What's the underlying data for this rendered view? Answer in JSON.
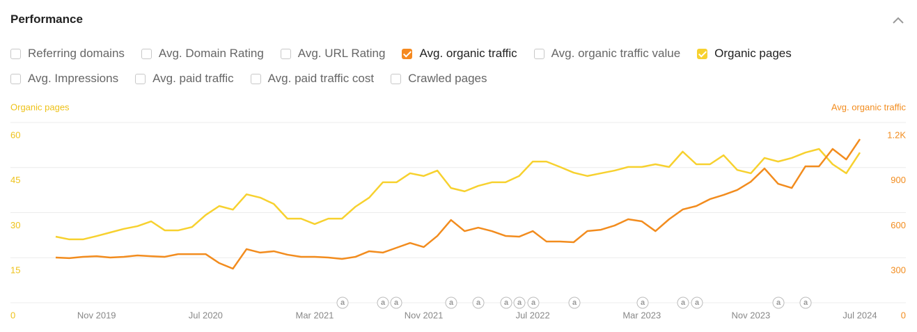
{
  "header": {
    "title": "Performance"
  },
  "metrics": [
    [
      {
        "label": "Referring domains",
        "checked": false
      },
      {
        "label": "Avg. Domain Rating",
        "checked": false
      },
      {
        "label": "Avg. URL Rating",
        "checked": false
      },
      {
        "label": "Avg. organic traffic",
        "checked": true,
        "color": "#f5891f"
      },
      {
        "label": "Avg. organic traffic value",
        "checked": false
      },
      {
        "label": "Organic pages",
        "checked": true,
        "color": "#f7d12f"
      }
    ],
    [
      {
        "label": "Avg. Impressions",
        "checked": false
      },
      {
        "label": "Avg. paid traffic",
        "checked": false
      },
      {
        "label": "Avg. paid traffic cost",
        "checked": false
      },
      {
        "label": "Crawled pages",
        "checked": false
      }
    ]
  ],
  "chart_data": {
    "type": "line",
    "ylabel": "Organic pages",
    "y2label": "Avg. organic traffic",
    "x": [
      "Aug 2019",
      "Sep 2019",
      "Oct 2019",
      "Nov 2019",
      "Dec 2019",
      "Jan 2020",
      "Feb 2020",
      "Mar 2020",
      "Apr 2020",
      "May 2020",
      "Jun 2020",
      "Jul 2020",
      "Aug 2020",
      "Sep 2020",
      "Oct 2020",
      "Nov 2020",
      "Dec 2020",
      "Jan 2021",
      "Feb 2021",
      "Mar 2021",
      "Apr 2021",
      "May 2021",
      "Jun 2021",
      "Jul 2021",
      "Aug 2021",
      "Sep 2021",
      "Oct 2021",
      "Nov 2021",
      "Dec 2021",
      "Jan 2022",
      "Feb 2022",
      "Mar 2022",
      "Apr 2022",
      "May 2022",
      "Jun 2022",
      "Jul 2022",
      "Aug 2022",
      "Sep 2022",
      "Oct 2022",
      "Nov 2022",
      "Dec 2022",
      "Jan 2023",
      "Feb 2023",
      "Mar 2023",
      "Apr 2023",
      "May 2023",
      "Jun 2023",
      "Jul 2023",
      "Aug 2023",
      "Sep 2023",
      "Oct 2023",
      "Nov 2023",
      "Dec 2023",
      "Jan 2024",
      "Feb 2024",
      "Mar 2024",
      "Apr 2024",
      "May 2024",
      "Jun 2024",
      "Jul 2024"
    ],
    "xticks": [
      "Nov 2019",
      "Jul 2020",
      "Mar 2021",
      "Nov 2021",
      "Jul 2022",
      "Mar 2023",
      "Nov 2023",
      "Jul 2024"
    ],
    "ylim": [
      0,
      60
    ],
    "yticks": [
      0,
      15,
      30,
      45,
      60
    ],
    "y2lim": [
      0,
      1200
    ],
    "y2ticks": [
      0,
      300,
      600,
      900,
      {
        "value": 1200,
        "label": "1.2K"
      }
    ],
    "grid": true,
    "annotation_marker": "a",
    "series": [
      {
        "name": "Organic pages",
        "color": "#f7d12f",
        "axis": "y",
        "values": [
          22.0,
          21.1,
          21.1,
          22.2,
          23.4,
          24.6,
          25.5,
          27.1,
          24.1,
          24.1,
          25.2,
          29.2,
          32.2,
          31.0,
          36.1,
          35.0,
          32.9,
          28.0,
          28.0,
          26.2,
          28.0,
          28.0,
          32.0,
          35.0,
          40.1,
          40.1,
          43.1,
          42.2,
          44.0,
          38.2,
          37.1,
          38.9,
          40.1,
          40.1,
          42.2,
          47.0,
          47.0,
          45.2,
          43.3,
          42.2,
          43.1,
          44.0,
          45.2,
          45.2,
          46.1,
          45.2,
          50.3,
          46.1,
          46.1,
          49.1,
          44.2,
          43.1,
          48.2,
          47.0,
          48.2,
          50.0,
          51.2,
          46.1,
          43.1,
          50.0
        ]
      },
      {
        "name": "Avg. organic traffic",
        "color": "#f28c1e",
        "axis": "y2",
        "values": [
          301,
          297,
          306,
          310,
          301,
          306,
          315,
          310,
          306,
          324,
          324,
          324,
          264,
          227,
          357,
          334,
          343,
          320,
          306,
          306,
          301,
          292,
          306,
          343,
          334,
          366,
          398,
          371,
          445,
          551,
          477,
          500,
          477,
          445,
          440,
          477,
          408,
          408,
          403,
          477,
          486,
          514,
          556,
          542,
          477,
          556,
          621,
          644,
          690,
          718,
          751,
          806,
          894,
          792,
          764,
          908,
          908,
          1024,
          954,
          1089
        ]
      }
    ]
  }
}
